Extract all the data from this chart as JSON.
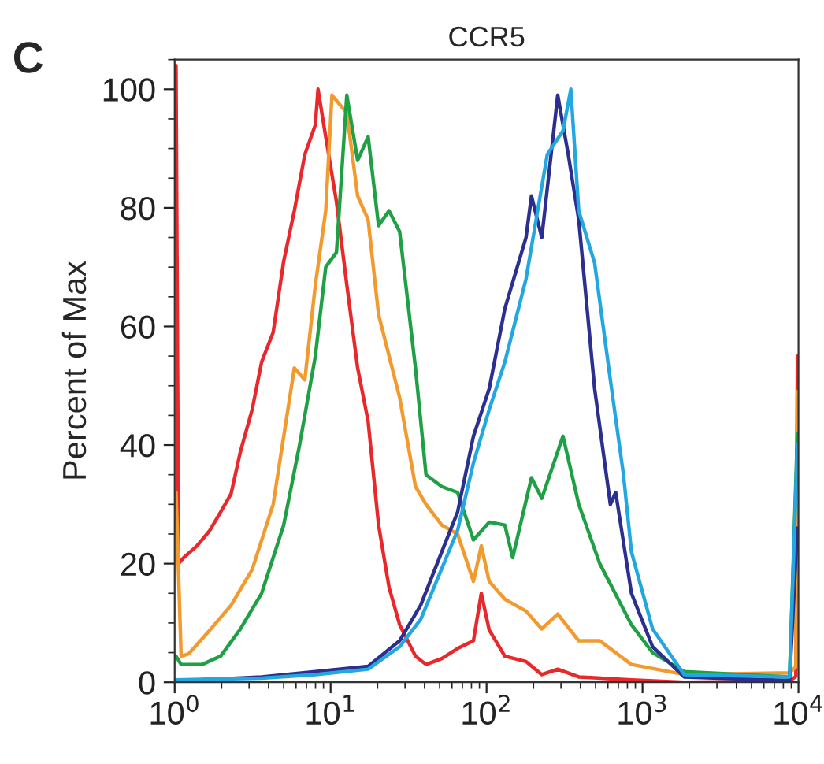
{
  "chart_data": {
    "type": "line",
    "title": "CCR5",
    "ylabel": "Percent of Max",
    "annotations": [
      "C"
    ],
    "xlim": [
      1,
      10000
    ],
    "log": "x",
    "xticks": [
      {
        "value": 1,
        "label": "10$^{0}$"
      },
      {
        "value": 10,
        "label": "10$^{1}$"
      },
      {
        "value": 100,
        "label": "10$^{2}$"
      },
      {
        "value": 1000,
        "label": "10$^{3}$"
      },
      {
        "value": 10000,
        "label": "10$^{4}$"
      }
    ],
    "ylim": [
      0,
      105
    ],
    "yticks": [
      0,
      20,
      40,
      60,
      80,
      100
    ],
    "grid": false,
    "legend": false,
    "marker": "none",
    "line_style": "solid",
    "series": [
      {
        "color": "#e8282b",
        "x": [
          1.02,
          1.06,
          1.14,
          1.39,
          1.68,
          1.97,
          2.3,
          2.64,
          3.14,
          3.61,
          4.28,
          5.0,
          5.85,
          6.83,
          7.98,
          8.3,
          9.3,
          10.9,
          12.7,
          14.9,
          17.4,
          20.3,
          23.7,
          27.7,
          35,
          40.9,
          51.6,
          65.2,
          82.4,
          92.5,
          104,
          131,
          179,
          226,
          286,
          390,
          849,
          1850,
          8770,
          9620,
          9840
        ],
        "values": [
          104,
          20,
          21,
          23,
          25.6,
          28.7,
          31.8,
          38.9,
          46,
          54,
          59,
          71,
          79.5,
          89,
          94,
          100,
          92,
          81,
          67,
          53,
          44,
          26.5,
          16,
          9.7,
          4.4,
          3,
          4,
          5.7,
          7,
          15,
          8.8,
          4.4,
          3.5,
          1.3,
          2.2,
          0.9,
          0.4,
          0,
          0.2,
          1,
          55
        ]
      },
      {
        "color": "#f39a2e",
        "x": [
          1.02,
          1.1,
          1.23,
          1.68,
          2.3,
          3.14,
          4.28,
          5.85,
          6.83,
          7.98,
          9.3,
          10.2,
          12.7,
          14.9,
          17.4,
          20.3,
          27.7,
          35,
          40.9,
          51.6,
          65.2,
          82.4,
          92.5,
          104,
          131,
          179,
          226,
          286,
          390,
          532,
          849,
          1850,
          8770,
          9620,
          9840
        ],
        "values": [
          32,
          4.4,
          4.8,
          8.8,
          13,
          19,
          30,
          53,
          51,
          67,
          79.5,
          99,
          96,
          82,
          78,
          62,
          48,
          33,
          30,
          26.5,
          25,
          17,
          23,
          17,
          14,
          12,
          9,
          11.5,
          7,
          7,
          3,
          1.3,
          1.6,
          2.6,
          49
        ]
      },
      {
        "color": "#1fa045",
        "x": [
          1.02,
          1.1,
          1.5,
          1.97,
          2.64,
          3.61,
          5.0,
          6.32,
          7.98,
          9.3,
          10.9,
          12.7,
          14.9,
          17.4,
          20.3,
          23.7,
          27.7,
          35,
          40.9,
          51.6,
          65.2,
          82.4,
          104,
          131,
          147,
          194,
          226,
          309,
          390,
          532,
          849,
          1160,
          1850,
          8770,
          9840
        ],
        "values": [
          4.4,
          3,
          3,
          4.4,
          9,
          15,
          26.5,
          40,
          55,
          70,
          72.5,
          99,
          88,
          92,
          77,
          79.5,
          76,
          53,
          35,
          33,
          32,
          24,
          27,
          26.5,
          21,
          34.5,
          31,
          41.5,
          30,
          20,
          9.7,
          5,
          1.8,
          0.9,
          42
        ]
      },
      {
        "color": "#2b2f8f",
        "x": [
          1.02,
          3.61,
          7.98,
          17.4,
          27.7,
          37.8,
          51.6,
          65.2,
          82.4,
          104,
          131,
          179,
          194,
          226,
          286,
          334,
          390,
          493,
          622,
          673,
          849,
          1160,
          1850,
          8770,
          9840
        ],
        "values": [
          0.2,
          0.9,
          1.8,
          2.7,
          7,
          13,
          22,
          28.7,
          41.5,
          49.5,
          63,
          75,
          82,
          75,
          99,
          89,
          78,
          49.5,
          30,
          32,
          15,
          6,
          0.9,
          0.3,
          26
        ]
      },
      {
        "color": "#22a7e0",
        "x": [
          1.02,
          3.61,
          7.98,
          17.4,
          27.7,
          37.8,
          65.2,
          82.4,
          104,
          131,
          179,
          245,
          309,
          347,
          390,
          493,
          622,
          755,
          849,
          1160,
          1850,
          8770,
          9840
        ],
        "values": [
          0.4,
          0.7,
          1.3,
          2.2,
          6,
          10.6,
          25.6,
          37,
          46,
          54,
          68,
          89,
          93,
          100,
          79.5,
          70.7,
          51,
          35,
          22,
          9,
          1.3,
          0.9,
          40
        ]
      }
    ]
  }
}
